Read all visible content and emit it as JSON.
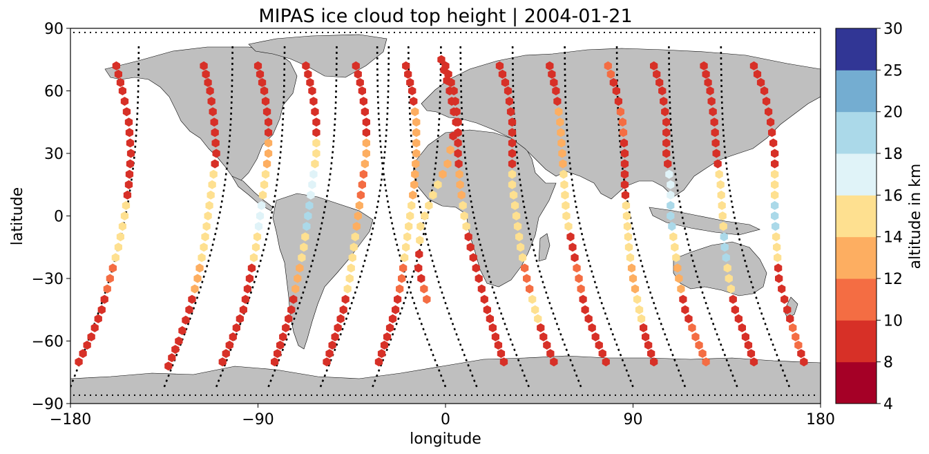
{
  "chart_data": {
    "type": "scatter",
    "title": "MIPAS ice cloud top height | 2004-01-21",
    "xlabel": "longitude",
    "ylabel": "latitude",
    "xlim": [
      -180,
      180
    ],
    "ylim": [
      -90,
      90
    ],
    "xticks": [
      -180,
      -90,
      0,
      90,
      180
    ],
    "xtick_labels": [
      "−180",
      "−90",
      "0",
      "90",
      "180"
    ],
    "yticks": [
      -90,
      -60,
      -30,
      0,
      30,
      60,
      90
    ],
    "ytick_labels": [
      "−90",
      "−60",
      "−30",
      "0",
      "30",
      "60",
      "90"
    ],
    "basemap": "world coastlines, land shaded grey",
    "land_color": "#bfbfbf",
    "track_color": "#000000",
    "marker": "hexagon",
    "colorbar": {
      "label": "altitude in km",
      "bounds": [
        4,
        8,
        10,
        12,
        14,
        16,
        18,
        20,
        25,
        30
      ],
      "tick_labels": [
        "4",
        "8",
        "10",
        "12",
        "14",
        "16",
        "18",
        "20",
        "25",
        "30"
      ],
      "colors": [
        "#a50026",
        "#d73027",
        "#f46d43",
        "#fdae61",
        "#fee090",
        "#e0f3f8",
        "#abd9e9",
        "#74add1",
        "#313695"
      ]
    },
    "orbit_tracks": [
      {
        "x0": -180,
        "dir": 1,
        "points": [
          [
            -176,
            -70,
            9
          ],
          [
            -170,
            -58,
            9
          ],
          [
            -165,
            -45,
            8
          ],
          [
            -161,
            -30,
            11
          ],
          [
            -157,
            -15,
            14
          ],
          [
            -154,
            0,
            15
          ],
          [
            -152,
            15,
            8
          ],
          [
            -151,
            30,
            8
          ],
          [
            -152,
            45,
            8
          ],
          [
            -155,
            60,
            8
          ],
          [
            -158,
            72,
            9
          ]
        ]
      },
      {
        "x0": -135,
        "dir": 1,
        "points": [
          [
            -133,
            -72,
            9
          ],
          [
            -128,
            -60,
            8
          ],
          [
            -123,
            -45,
            8
          ],
          [
            -119,
            -30,
            13
          ],
          [
            -116,
            -15,
            15
          ],
          [
            -114,
            0,
            15
          ],
          [
            -112,
            15,
            15
          ],
          [
            -110,
            30,
            8
          ],
          [
            -111,
            45,
            8
          ],
          [
            -113,
            60,
            8
          ],
          [
            -116,
            72,
            8
          ]
        ]
      },
      {
        "x0": -110,
        "dir": 1,
        "points": [
          [
            -107,
            -70,
            8
          ],
          [
            -102,
            -58,
            8
          ],
          [
            -97,
            -45,
            9
          ],
          [
            -94,
            -30,
            9
          ],
          [
            -91,
            -15,
            15
          ],
          [
            -89,
            0,
            17
          ],
          [
            -87,
            15,
            15
          ],
          [
            -85,
            30,
            13
          ],
          [
            -85,
            45,
            8
          ],
          [
            -87,
            60,
            8
          ],
          [
            -90,
            72,
            8
          ]
        ]
      },
      {
        "x0": -85,
        "dir": 1,
        "points": [
          [
            -82,
            -70,
            9
          ],
          [
            -78,
            -58,
            8
          ],
          [
            -74,
            -45,
            9
          ],
          [
            -71,
            -30,
            13
          ],
          [
            -68,
            -15,
            14
          ],
          [
            -66,
            0,
            19
          ],
          [
            -64,
            15,
            17
          ],
          [
            -62,
            30,
            15
          ],
          [
            -62,
            45,
            8
          ],
          [
            -64,
            60,
            8
          ],
          [
            -67,
            72,
            8
          ]
        ]
      },
      {
        "x0": -60,
        "dir": 1,
        "points": [
          [
            -57,
            -70,
            9
          ],
          [
            -53,
            -58,
            8
          ],
          [
            -49,
            -45,
            9
          ],
          [
            -46,
            -30,
            15
          ],
          [
            -44,
            -15,
            14
          ],
          [
            -42,
            0,
            13
          ],
          [
            -40,
            15,
            11
          ],
          [
            -38,
            30,
            13
          ],
          [
            -38,
            45,
            8
          ],
          [
            -40,
            60,
            8
          ],
          [
            -43,
            72,
            9
          ]
        ]
      },
      {
        "x0": -35,
        "dir": 1,
        "points": [
          [
            -32,
            -70,
            9
          ],
          [
            -28,
            -58,
            8
          ],
          [
            -24,
            -45,
            8
          ],
          [
            -21,
            -30,
            11
          ],
          [
            -19,
            -15,
            14
          ],
          [
            -17,
            0,
            15
          ],
          [
            -15,
            15,
            13
          ],
          [
            -14,
            30,
            13
          ],
          [
            -14,
            45,
            13
          ],
          [
            -16,
            60,
            8
          ],
          [
            -19,
            72,
            9
          ]
        ]
      },
      {
        "x0": 0,
        "dir": -1,
        "points": [
          [
            -9,
            -40,
            10
          ],
          [
            -13,
            -25,
            8
          ],
          [
            -12,
            -5,
            15
          ],
          [
            -6,
            10,
            15
          ],
          [
            1,
            25,
            13
          ],
          [
            5,
            45,
            8
          ],
          [
            2,
            60,
            9
          ],
          [
            -2,
            75,
            9
          ]
        ]
      },
      {
        "x0": 15,
        "dir": -1,
        "points": [
          [
            28,
            -70,
            8
          ],
          [
            24,
            -58,
            8
          ],
          [
            20,
            -45,
            8
          ],
          [
            16,
            -30,
            8
          ],
          [
            12,
            -15,
            8
          ],
          [
            9,
            0,
            15
          ],
          [
            7,
            15,
            13
          ],
          [
            6,
            30,
            8
          ],
          [
            6,
            45,
            8
          ],
          [
            4,
            60,
            9
          ],
          [
            0,
            72,
            9
          ]
        ]
      },
      {
        "x0": 40,
        "dir": -1,
        "points": [
          [
            52,
            -70,
            8
          ],
          [
            47,
            -58,
            8
          ],
          [
            43,
            -45,
            14
          ],
          [
            39,
            -30,
            11
          ],
          [
            36,
            -15,
            15
          ],
          [
            34,
            0,
            14
          ],
          [
            32,
            15,
            15
          ],
          [
            32,
            30,
            8
          ],
          [
            32,
            45,
            9
          ],
          [
            30,
            60,
            8
          ],
          [
            26,
            72,
            9
          ]
        ]
      },
      {
        "x0": 65,
        "dir": -1,
        "points": [
          [
            77,
            -70,
            8
          ],
          [
            72,
            -58,
            8
          ],
          [
            67,
            -45,
            8
          ],
          [
            64,
            -30,
            11
          ],
          [
            61,
            -15,
            8
          ],
          [
            58,
            0,
            14
          ],
          [
            57,
            15,
            14
          ],
          [
            56,
            30,
            13
          ],
          [
            55,
            45,
            13
          ],
          [
            53,
            60,
            9
          ],
          [
            50,
            72,
            8
          ]
        ]
      },
      {
        "x0": 90,
        "dir": -1,
        "points": [
          [
            100,
            -70,
            9
          ],
          [
            96,
            -58,
            9
          ],
          [
            93,
            -45,
            14
          ],
          [
            90,
            -30,
            12
          ],
          [
            88,
            -15,
            15
          ],
          [
            87,
            0,
            15
          ],
          [
            86,
            15,
            8
          ],
          [
            86,
            30,
            8
          ],
          [
            85,
            45,
            11
          ],
          [
            82,
            60,
            9
          ],
          [
            78,
            72,
            11
          ]
        ]
      },
      {
        "x0": 115,
        "dir": -1,
        "points": [
          [
            125,
            -70,
            10
          ],
          [
            120,
            -58,
            10
          ],
          [
            115,
            -45,
            9
          ],
          [
            112,
            -30,
            13
          ],
          [
            110,
            -15,
            15
          ],
          [
            108,
            0,
            18
          ],
          [
            108,
            15,
            17
          ],
          [
            106,
            30,
            8
          ],
          [
            106,
            45,
            8
          ],
          [
            104,
            60,
            8
          ],
          [
            100,
            72,
            8
          ]
        ]
      },
      {
        "x0": 140,
        "dir": -1,
        "points": [
          [
            148,
            -70,
            9
          ],
          [
            144,
            -58,
            8
          ],
          [
            139,
            -45,
            8
          ],
          [
            136,
            -30,
            15
          ],
          [
            134,
            -15,
            19
          ],
          [
            133,
            0,
            15
          ],
          [
            132,
            15,
            14
          ],
          [
            130,
            30,
            8
          ],
          [
            129,
            45,
            8
          ],
          [
            127,
            60,
            9
          ],
          [
            124,
            72,
            9
          ]
        ]
      },
      {
        "x0": 165,
        "dir": -1,
        "points": [
          [
            172,
            -70,
            9
          ],
          [
            168,
            -58,
            10
          ],
          [
            164,
            -45,
            8
          ],
          [
            160,
            -30,
            9
          ],
          [
            159,
            -15,
            15
          ],
          [
            158,
            0,
            19
          ],
          [
            158,
            15,
            15
          ],
          [
            158,
            30,
            8
          ],
          [
            156,
            45,
            8
          ],
          [
            153,
            60,
            8
          ],
          [
            148,
            72,
            8
          ]
        ]
      }
    ]
  }
}
